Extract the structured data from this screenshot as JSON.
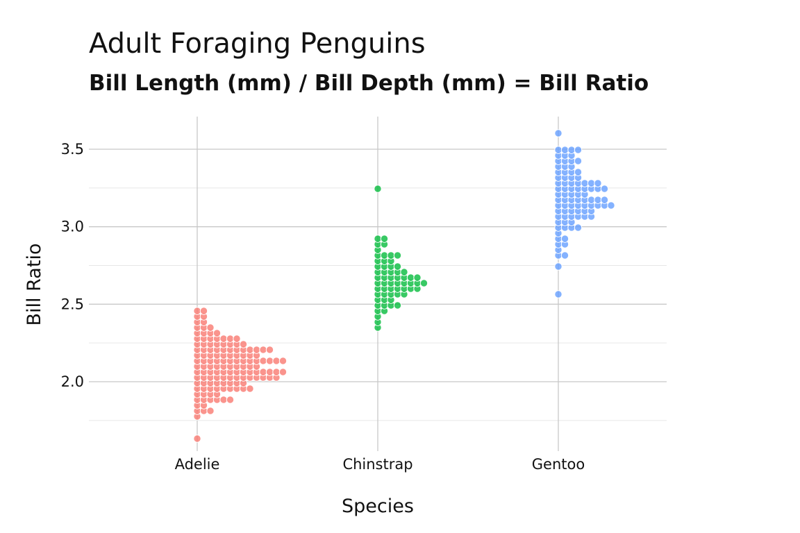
{
  "chart_data": {
    "type": "scatter",
    "title": "Adult Foraging Penguins",
    "subtitle": "Bill Length (mm) / Bill Depth (mm) = Bill Ratio",
    "xlabel": "Species",
    "ylabel": "Bill Ratio",
    "categories": [
      "Adelie",
      "Chinstrap",
      "Gentoo"
    ],
    "y_ticks": [
      "2.0",
      "2.5",
      "3.0",
      "3.5"
    ],
    "ylim": [
      1.6,
      3.7
    ],
    "grid": true,
    "legend": "none",
    "series": [
      {
        "category": "Adelie",
        "color": "#F8766D",
        "y_min": 1.64,
        "y_max": 2.45,
        "values": [
          1.64,
          1.76,
          1.81,
          1.82,
          1.82,
          1.84,
          1.86,
          1.87,
          1.87,
          1.88,
          1.89,
          1.9,
          1.9,
          1.91,
          1.92,
          1.92,
          1.93,
          1.94,
          1.94,
          1.95,
          1.95,
          1.96,
          1.96,
          1.97,
          1.97,
          1.97,
          1.98,
          1.98,
          1.99,
          1.99,
          1.99,
          2.0,
          2.0,
          2.0,
          2.01,
          2.01,
          2.01,
          2.02,
          2.02,
          2.02,
          2.03,
          2.03,
          2.03,
          2.04,
          2.04,
          2.04,
          2.04,
          2.05,
          2.05,
          2.05,
          2.06,
          2.06,
          2.06,
          2.06,
          2.07,
          2.07,
          2.07,
          2.08,
          2.08,
          2.08,
          2.08,
          2.09,
          2.09,
          2.09,
          2.1,
          2.1,
          2.1,
          2.1,
          2.11,
          2.11,
          2.11,
          2.12,
          2.12,
          2.12,
          2.12,
          2.13,
          2.13,
          2.13,
          2.14,
          2.14,
          2.14,
          2.14,
          2.15,
          2.15,
          2.15,
          2.16,
          2.16,
          2.16,
          2.17,
          2.17,
          2.17,
          2.17,
          2.18,
          2.18,
          2.18,
          2.19,
          2.19,
          2.19,
          2.2,
          2.2,
          2.2,
          2.21,
          2.21,
          2.21,
          2.22,
          2.22,
          2.22,
          2.23,
          2.23,
          2.23,
          2.24,
          2.24,
          2.25,
          2.25,
          2.25,
          2.26,
          2.26,
          2.27,
          2.27,
          2.28,
          2.28,
          2.29,
          2.3,
          2.31,
          2.32,
          2.33,
          2.34,
          2.35,
          2.36,
          2.37,
          2.39,
          2.41,
          2.43,
          2.44,
          2.45
        ]
      },
      {
        "category": "Chinstrap",
        "color": "#00BA38",
        "y_min": 2.35,
        "y_max": 3.26,
        "values": [
          2.35,
          2.4,
          2.42,
          2.44,
          2.46,
          2.48,
          2.49,
          2.5,
          2.51,
          2.52,
          2.53,
          2.54,
          2.55,
          2.56,
          2.56,
          2.57,
          2.58,
          2.59,
          2.59,
          2.6,
          2.6,
          2.61,
          2.61,
          2.61,
          2.62,
          2.62,
          2.63,
          2.63,
          2.64,
          2.64,
          2.65,
          2.65,
          2.66,
          2.66,
          2.67,
          2.67,
          2.67,
          2.68,
          2.68,
          2.69,
          2.69,
          2.7,
          2.71,
          2.72,
          2.73,
          2.74,
          2.75,
          2.76,
          2.77,
          2.78,
          2.79,
          2.8,
          2.81,
          2.82,
          2.83,
          2.85,
          2.87,
          2.89,
          2.91,
          2.93,
          3.26
        ]
      },
      {
        "category": "Gentoo",
        "color": "#619CFF",
        "y_min": 2.57,
        "y_max": 3.61,
        "values": [
          2.57,
          2.76,
          2.8,
          2.83,
          2.85,
          2.87,
          2.9,
          2.92,
          2.94,
          2.96,
          2.98,
          2.99,
          3.0,
          3.01,
          3.02,
          3.03,
          3.04,
          3.05,
          3.05,
          3.06,
          3.07,
          3.08,
          3.08,
          3.09,
          3.09,
          3.1,
          3.1,
          3.11,
          3.11,
          3.12,
          3.12,
          3.12,
          3.13,
          3.13,
          3.14,
          3.14,
          3.15,
          3.15,
          3.16,
          3.16,
          3.17,
          3.17,
          3.18,
          3.18,
          3.19,
          3.19,
          3.2,
          3.21,
          3.21,
          3.22,
          3.22,
          3.23,
          3.23,
          3.24,
          3.24,
          3.25,
          3.25,
          3.26,
          3.26,
          3.27,
          3.27,
          3.28,
          3.28,
          3.28,
          3.29,
          3.29,
          3.3,
          3.31,
          3.32,
          3.33,
          3.34,
          3.35,
          3.36,
          3.37,
          3.38,
          3.39,
          3.4,
          3.41,
          3.42,
          3.43,
          3.44,
          3.45,
          3.46,
          3.47,
          3.48,
          3.49,
          3.5,
          3.51,
          3.61
        ]
      }
    ]
  }
}
